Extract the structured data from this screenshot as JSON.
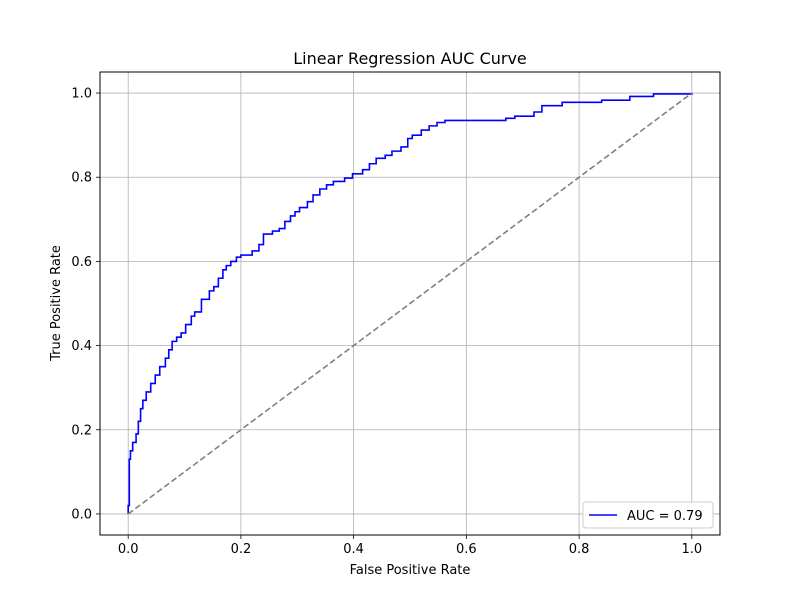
{
  "chart_data": {
    "type": "line",
    "title": "Linear Regression AUC Curve",
    "xlabel": "False Positive Rate",
    "ylabel": "True Positive Rate",
    "xlim": [
      -0.05,
      1.05
    ],
    "ylim": [
      -0.05,
      1.05
    ],
    "xticks": [
      0.0,
      0.2,
      0.4,
      0.6,
      0.8,
      1.0
    ],
    "yticks": [
      0.0,
      0.2,
      0.4,
      0.6,
      0.8,
      1.0
    ],
    "xtick_labels": [
      "0.0",
      "0.2",
      "0.4",
      "0.6",
      "0.8",
      "1.0"
    ],
    "ytick_labels": [
      "0.0",
      "0.2",
      "0.4",
      "0.6",
      "0.8",
      "1.0"
    ],
    "grid": true,
    "legend_position": "lower-right",
    "series": [
      {
        "name": "AUC = 0.79",
        "color": "#0000ff",
        "style": "solid",
        "points": [
          [
            0.0,
            0.0
          ],
          [
            0.0,
            0.02
          ],
          [
            0.002,
            0.02
          ],
          [
            0.002,
            0.13
          ],
          [
            0.004,
            0.13
          ],
          [
            0.004,
            0.15
          ],
          [
            0.008,
            0.15
          ],
          [
            0.008,
            0.17
          ],
          [
            0.014,
            0.17
          ],
          [
            0.014,
            0.19
          ],
          [
            0.018,
            0.19
          ],
          [
            0.018,
            0.22
          ],
          [
            0.022,
            0.22
          ],
          [
            0.022,
            0.25
          ],
          [
            0.026,
            0.25
          ],
          [
            0.026,
            0.27
          ],
          [
            0.032,
            0.27
          ],
          [
            0.032,
            0.29
          ],
          [
            0.04,
            0.29
          ],
          [
            0.04,
            0.31
          ],
          [
            0.048,
            0.31
          ],
          [
            0.048,
            0.33
          ],
          [
            0.056,
            0.33
          ],
          [
            0.056,
            0.35
          ],
          [
            0.066,
            0.35
          ],
          [
            0.066,
            0.37
          ],
          [
            0.072,
            0.37
          ],
          [
            0.072,
            0.39
          ],
          [
            0.078,
            0.39
          ],
          [
            0.078,
            0.41
          ],
          [
            0.086,
            0.41
          ],
          [
            0.086,
            0.42
          ],
          [
            0.094,
            0.42
          ],
          [
            0.094,
            0.43
          ],
          [
            0.102,
            0.43
          ],
          [
            0.102,
            0.45
          ],
          [
            0.112,
            0.45
          ],
          [
            0.112,
            0.47
          ],
          [
            0.118,
            0.47
          ],
          [
            0.118,
            0.48
          ],
          [
            0.13,
            0.48
          ],
          [
            0.13,
            0.51
          ],
          [
            0.144,
            0.51
          ],
          [
            0.144,
            0.53
          ],
          [
            0.152,
            0.53
          ],
          [
            0.152,
            0.54
          ],
          [
            0.16,
            0.54
          ],
          [
            0.16,
            0.56
          ],
          [
            0.168,
            0.56
          ],
          [
            0.168,
            0.58
          ],
          [
            0.174,
            0.58
          ],
          [
            0.174,
            0.59
          ],
          [
            0.182,
            0.59
          ],
          [
            0.182,
            0.6
          ],
          [
            0.192,
            0.6
          ],
          [
            0.192,
            0.61
          ],
          [
            0.2,
            0.61
          ],
          [
            0.2,
            0.615
          ],
          [
            0.22,
            0.615
          ],
          [
            0.22,
            0.625
          ],
          [
            0.232,
            0.625
          ],
          [
            0.232,
            0.64
          ],
          [
            0.24,
            0.64
          ],
          [
            0.24,
            0.665
          ],
          [
            0.256,
            0.665
          ],
          [
            0.256,
            0.672
          ],
          [
            0.268,
            0.672
          ],
          [
            0.268,
            0.678
          ],
          [
            0.278,
            0.678
          ],
          [
            0.278,
            0.695
          ],
          [
            0.288,
            0.695
          ],
          [
            0.288,
            0.708
          ],
          [
            0.296,
            0.708
          ],
          [
            0.296,
            0.718
          ],
          [
            0.304,
            0.718
          ],
          [
            0.304,
            0.728
          ],
          [
            0.318,
            0.728
          ],
          [
            0.318,
            0.742
          ],
          [
            0.328,
            0.742
          ],
          [
            0.328,
            0.758
          ],
          [
            0.34,
            0.758
          ],
          [
            0.34,
            0.772
          ],
          [
            0.352,
            0.772
          ],
          [
            0.352,
            0.782
          ],
          [
            0.364,
            0.782
          ],
          [
            0.364,
            0.79
          ],
          [
            0.384,
            0.79
          ],
          [
            0.384,
            0.798
          ],
          [
            0.398,
            0.798
          ],
          [
            0.398,
            0.808
          ],
          [
            0.416,
            0.808
          ],
          [
            0.416,
            0.818
          ],
          [
            0.428,
            0.818
          ],
          [
            0.428,
            0.832
          ],
          [
            0.44,
            0.832
          ],
          [
            0.44,
            0.845
          ],
          [
            0.456,
            0.845
          ],
          [
            0.456,
            0.852
          ],
          [
            0.468,
            0.852
          ],
          [
            0.468,
            0.862
          ],
          [
            0.484,
            0.862
          ],
          [
            0.484,
            0.872
          ],
          [
            0.496,
            0.872
          ],
          [
            0.496,
            0.892
          ],
          [
            0.504,
            0.892
          ],
          [
            0.504,
            0.9
          ],
          [
            0.52,
            0.9
          ],
          [
            0.52,
            0.912
          ],
          [
            0.534,
            0.912
          ],
          [
            0.534,
            0.922
          ],
          [
            0.548,
            0.922
          ],
          [
            0.548,
            0.93
          ],
          [
            0.562,
            0.93
          ],
          [
            0.562,
            0.935
          ],
          [
            0.67,
            0.935
          ],
          [
            0.67,
            0.94
          ],
          [
            0.686,
            0.94
          ],
          [
            0.686,
            0.945
          ],
          [
            0.72,
            0.945
          ],
          [
            0.72,
            0.955
          ],
          [
            0.734,
            0.955
          ],
          [
            0.734,
            0.97
          ],
          [
            0.77,
            0.97
          ],
          [
            0.77,
            0.978
          ],
          [
            0.84,
            0.978
          ],
          [
            0.84,
            0.983
          ],
          [
            0.89,
            0.983
          ],
          [
            0.89,
            0.992
          ],
          [
            0.932,
            0.992
          ],
          [
            0.932,
            0.998
          ],
          [
            1.0,
            0.998
          ],
          [
            1.0,
            1.0
          ]
        ]
      },
      {
        "color": "#808080",
        "style": "dashed",
        "points": [
          [
            0.0,
            0.0
          ],
          [
            1.0,
            1.0
          ]
        ]
      }
    ]
  }
}
